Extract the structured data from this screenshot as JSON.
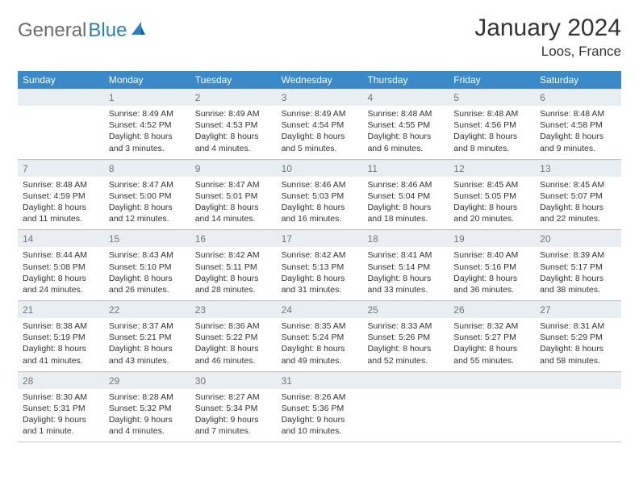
{
  "brand": {
    "part1": "General",
    "part2": "Blue"
  },
  "title": "January 2024",
  "location": "Loos, France",
  "colors": {
    "header_bar": "#3a89c9",
    "daynum_bg": "#e8eef2",
    "daynum_text": "#757575",
    "logo_gray": "#6b6b6b",
    "logo_blue": "#2b7fc3",
    "body_text": "#333333",
    "rule": "#c3c3c3",
    "background": "#ffffff"
  },
  "daysOfWeek": [
    "Sunday",
    "Monday",
    "Tuesday",
    "Wednesday",
    "Thursday",
    "Friday",
    "Saturday"
  ],
  "weeks": [
    [
      {
        "num": "",
        "sunrise": "",
        "sunset": "",
        "daylight": ""
      },
      {
        "num": "1",
        "sunrise": "Sunrise: 8:49 AM",
        "sunset": "Sunset: 4:52 PM",
        "daylight": "Daylight: 8 hours and 3 minutes."
      },
      {
        "num": "2",
        "sunrise": "Sunrise: 8:49 AM",
        "sunset": "Sunset: 4:53 PM",
        "daylight": "Daylight: 8 hours and 4 minutes."
      },
      {
        "num": "3",
        "sunrise": "Sunrise: 8:49 AM",
        "sunset": "Sunset: 4:54 PM",
        "daylight": "Daylight: 8 hours and 5 minutes."
      },
      {
        "num": "4",
        "sunrise": "Sunrise: 8:48 AM",
        "sunset": "Sunset: 4:55 PM",
        "daylight": "Daylight: 8 hours and 6 minutes."
      },
      {
        "num": "5",
        "sunrise": "Sunrise: 8:48 AM",
        "sunset": "Sunset: 4:56 PM",
        "daylight": "Daylight: 8 hours and 8 minutes."
      },
      {
        "num": "6",
        "sunrise": "Sunrise: 8:48 AM",
        "sunset": "Sunset: 4:58 PM",
        "daylight": "Daylight: 8 hours and 9 minutes."
      }
    ],
    [
      {
        "num": "7",
        "sunrise": "Sunrise: 8:48 AM",
        "sunset": "Sunset: 4:59 PM",
        "daylight": "Daylight: 8 hours and 11 minutes."
      },
      {
        "num": "8",
        "sunrise": "Sunrise: 8:47 AM",
        "sunset": "Sunset: 5:00 PM",
        "daylight": "Daylight: 8 hours and 12 minutes."
      },
      {
        "num": "9",
        "sunrise": "Sunrise: 8:47 AM",
        "sunset": "Sunset: 5:01 PM",
        "daylight": "Daylight: 8 hours and 14 minutes."
      },
      {
        "num": "10",
        "sunrise": "Sunrise: 8:46 AM",
        "sunset": "Sunset: 5:03 PM",
        "daylight": "Daylight: 8 hours and 16 minutes."
      },
      {
        "num": "11",
        "sunrise": "Sunrise: 8:46 AM",
        "sunset": "Sunset: 5:04 PM",
        "daylight": "Daylight: 8 hours and 18 minutes."
      },
      {
        "num": "12",
        "sunrise": "Sunrise: 8:45 AM",
        "sunset": "Sunset: 5:05 PM",
        "daylight": "Daylight: 8 hours and 20 minutes."
      },
      {
        "num": "13",
        "sunrise": "Sunrise: 8:45 AM",
        "sunset": "Sunset: 5:07 PM",
        "daylight": "Daylight: 8 hours and 22 minutes."
      }
    ],
    [
      {
        "num": "14",
        "sunrise": "Sunrise: 8:44 AM",
        "sunset": "Sunset: 5:08 PM",
        "daylight": "Daylight: 8 hours and 24 minutes."
      },
      {
        "num": "15",
        "sunrise": "Sunrise: 8:43 AM",
        "sunset": "Sunset: 5:10 PM",
        "daylight": "Daylight: 8 hours and 26 minutes."
      },
      {
        "num": "16",
        "sunrise": "Sunrise: 8:42 AM",
        "sunset": "Sunset: 5:11 PM",
        "daylight": "Daylight: 8 hours and 28 minutes."
      },
      {
        "num": "17",
        "sunrise": "Sunrise: 8:42 AM",
        "sunset": "Sunset: 5:13 PM",
        "daylight": "Daylight: 8 hours and 31 minutes."
      },
      {
        "num": "18",
        "sunrise": "Sunrise: 8:41 AM",
        "sunset": "Sunset: 5:14 PM",
        "daylight": "Daylight: 8 hours and 33 minutes."
      },
      {
        "num": "19",
        "sunrise": "Sunrise: 8:40 AM",
        "sunset": "Sunset: 5:16 PM",
        "daylight": "Daylight: 8 hours and 36 minutes."
      },
      {
        "num": "20",
        "sunrise": "Sunrise: 8:39 AM",
        "sunset": "Sunset: 5:17 PM",
        "daylight": "Daylight: 8 hours and 38 minutes."
      }
    ],
    [
      {
        "num": "21",
        "sunrise": "Sunrise: 8:38 AM",
        "sunset": "Sunset: 5:19 PM",
        "daylight": "Daylight: 8 hours and 41 minutes."
      },
      {
        "num": "22",
        "sunrise": "Sunrise: 8:37 AM",
        "sunset": "Sunset: 5:21 PM",
        "daylight": "Daylight: 8 hours and 43 minutes."
      },
      {
        "num": "23",
        "sunrise": "Sunrise: 8:36 AM",
        "sunset": "Sunset: 5:22 PM",
        "daylight": "Daylight: 8 hours and 46 minutes."
      },
      {
        "num": "24",
        "sunrise": "Sunrise: 8:35 AM",
        "sunset": "Sunset: 5:24 PM",
        "daylight": "Daylight: 8 hours and 49 minutes."
      },
      {
        "num": "25",
        "sunrise": "Sunrise: 8:33 AM",
        "sunset": "Sunset: 5:26 PM",
        "daylight": "Daylight: 8 hours and 52 minutes."
      },
      {
        "num": "26",
        "sunrise": "Sunrise: 8:32 AM",
        "sunset": "Sunset: 5:27 PM",
        "daylight": "Daylight: 8 hours and 55 minutes."
      },
      {
        "num": "27",
        "sunrise": "Sunrise: 8:31 AM",
        "sunset": "Sunset: 5:29 PM",
        "daylight": "Daylight: 8 hours and 58 minutes."
      }
    ],
    [
      {
        "num": "28",
        "sunrise": "Sunrise: 8:30 AM",
        "sunset": "Sunset: 5:31 PM",
        "daylight": "Daylight: 9 hours and 1 minute."
      },
      {
        "num": "29",
        "sunrise": "Sunrise: 8:28 AM",
        "sunset": "Sunset: 5:32 PM",
        "daylight": "Daylight: 9 hours and 4 minutes."
      },
      {
        "num": "30",
        "sunrise": "Sunrise: 8:27 AM",
        "sunset": "Sunset: 5:34 PM",
        "daylight": "Daylight: 9 hours and 7 minutes."
      },
      {
        "num": "31",
        "sunrise": "Sunrise: 8:26 AM",
        "sunset": "Sunset: 5:36 PM",
        "daylight": "Daylight: 9 hours and 10 minutes."
      },
      {
        "num": "",
        "sunrise": "",
        "sunset": "",
        "daylight": ""
      },
      {
        "num": "",
        "sunrise": "",
        "sunset": "",
        "daylight": ""
      },
      {
        "num": "",
        "sunrise": "",
        "sunset": "",
        "daylight": ""
      }
    ]
  ]
}
